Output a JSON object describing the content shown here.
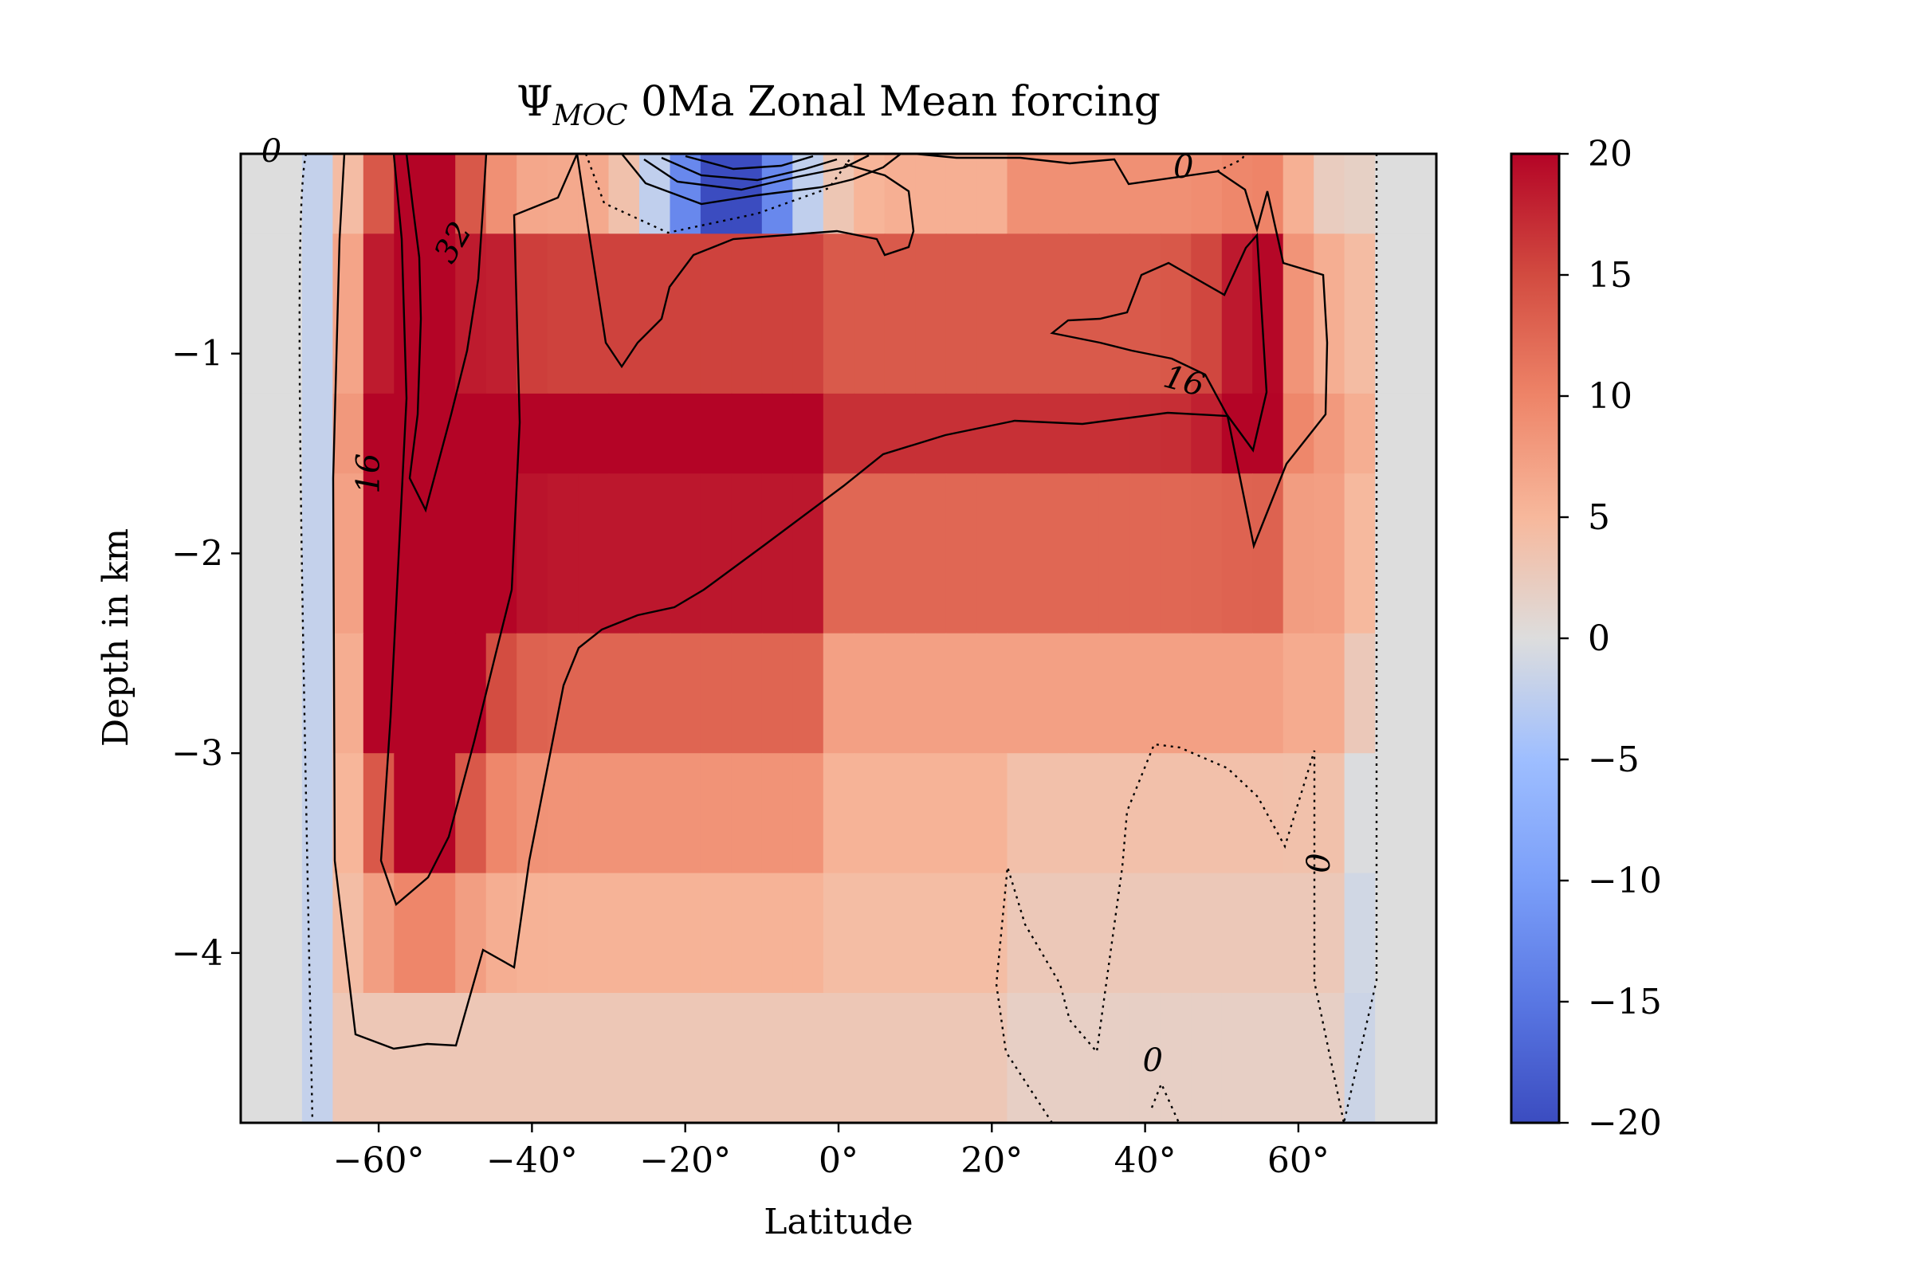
{
  "chart_data": {
    "type": "heatmap",
    "title": "Ψ",
    "title_subscript": "MOC",
    "title_rest": " 0Ma Zonal Mean forcing",
    "xlabel": "Latitude",
    "ylabel": "Depth in km",
    "xlim": [
      -78,
      78
    ],
    "ylim": [
      -4.85,
      0
    ],
    "x_ticks": [
      -60,
      -40,
      -20,
      0,
      20,
      40,
      60
    ],
    "x_tick_labels": [
      "−60°",
      "−40°",
      "−20°",
      "0°",
      "20°",
      "40°",
      "60°"
    ],
    "y_ticks": [
      -1,
      -2,
      -3,
      -4
    ],
    "y_tick_labels": [
      "−1",
      "−2",
      "−3",
      "−4"
    ],
    "colorbar": {
      "colormap": "coolwarm",
      "vmin": -20,
      "vmax": 20,
      "ticks": [
        20,
        15,
        10,
        5,
        0,
        -5,
        -10,
        -15,
        -20
      ],
      "tick_labels": [
        "20",
        "15",
        "10",
        "5",
        "0",
        "−5",
        "−10",
        "−15",
        "−20"
      ]
    },
    "depth_levels": [
      0,
      -0.4,
      -1.2,
      -1.6,
      -2.4,
      -3.0,
      -3.6,
      -4.2,
      -4.85
    ],
    "grid": false,
    "contour_levels": [
      0,
      16,
      32
    ],
    "contour_labels": [
      {
        "text": "32",
        "x": -50,
        "y": -0.45,
        "rotate": -60
      },
      {
        "text": "16",
        "x": -61,
        "y": -1.6,
        "rotate": -90
      },
      {
        "text": "16",
        "x": 45,
        "y": -1.15,
        "rotate": 15
      },
      {
        "text": "0",
        "x": 45,
        "y": -0.08,
        "rotate": 0
      },
      {
        "text": "0",
        "x": 41,
        "y": -4.55,
        "rotate": 0
      },
      {
        "text": "0",
        "x": 63,
        "y": -3.55,
        "rotate": -90
      },
      {
        "text": "0",
        "x": -74,
        "y": 0.0,
        "rotate": 0
      }
    ]
  }
}
